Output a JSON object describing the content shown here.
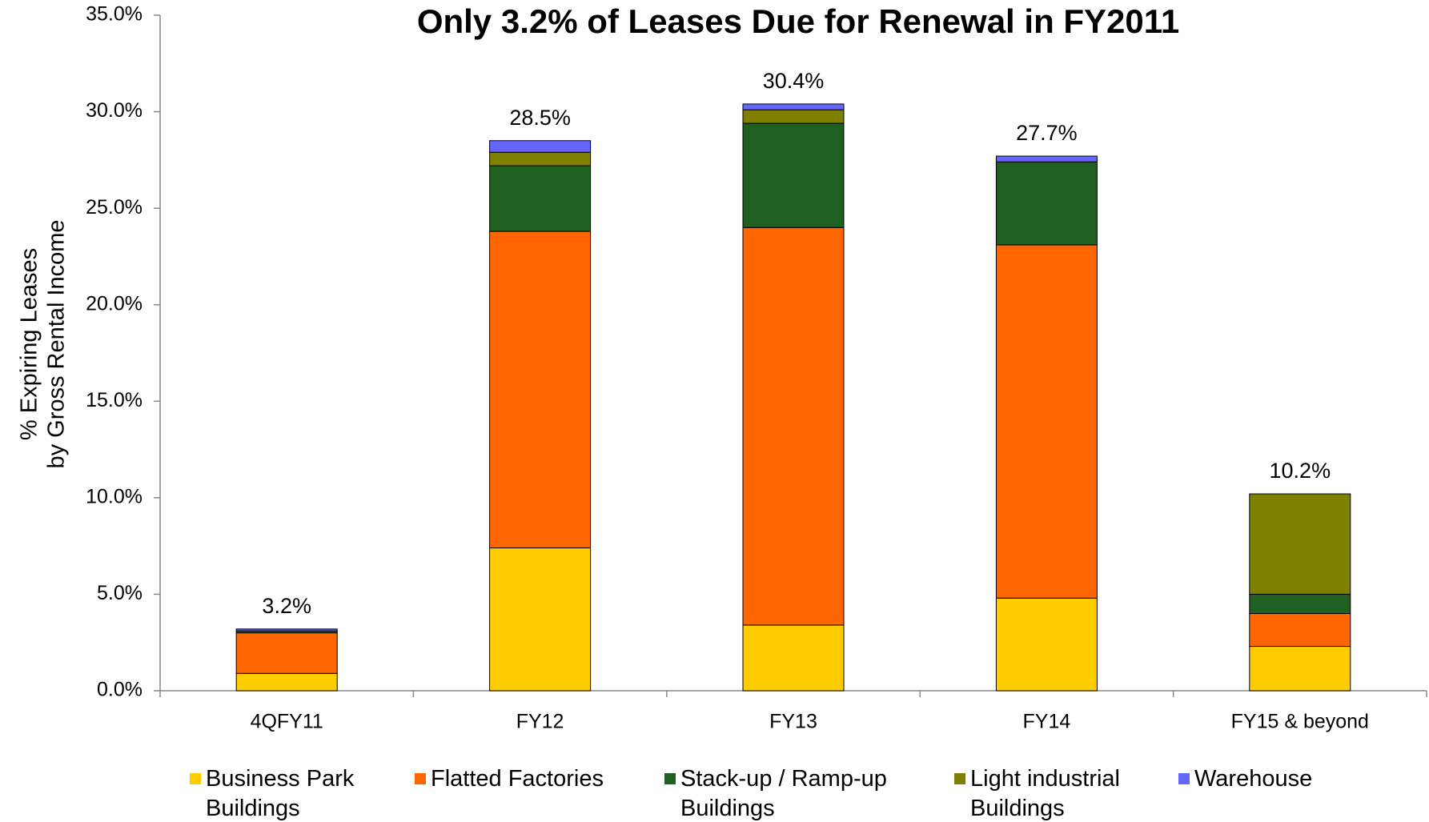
{
  "chart_data": {
    "type": "stacked_bar",
    "title": "Only 3.2% of Leases Due for Renewal in FY2011",
    "y_label": [
      "% Expiring Leases",
      "by Gross Rental Income"
    ],
    "categories": [
      "4QFY11",
      "FY12",
      "FY13",
      "FY14",
      "FY15 & beyond"
    ],
    "series": [
      {
        "name": "Business Park Buildings",
        "color": "#FFCC00",
        "values": [
          0.9,
          7.4,
          3.4,
          4.8,
          2.3
        ]
      },
      {
        "name": "Flatted Factories",
        "color": "#FF6600",
        "values": [
          2.1,
          16.4,
          20.6,
          18.3,
          1.7
        ]
      },
      {
        "name": "Stack-up / Ramp-up Buildings",
        "color": "#1F5F1F",
        "values": [
          0.1,
          3.4,
          5.4,
          4.3,
          1.0
        ]
      },
      {
        "name": "Light industrial Buildings",
        "color": "#808000",
        "values": [
          0,
          0.7,
          0.7,
          0,
          5.2
        ]
      },
      {
        "name": "Warehouse",
        "color": "#6666FF",
        "values": [
          0.1,
          0.6,
          0.3,
          0.3,
          0
        ]
      }
    ],
    "totals": [
      3.2,
      28.5,
      30.4,
      27.7,
      10.2
    ],
    "total_labels": [
      "3.2%",
      "28.5%",
      "30.4%",
      "27.7%",
      "10.2%"
    ],
    "ylim": [
      0,
      35
    ],
    "yticks": [
      {
        "value": 0,
        "label": "0.0%"
      },
      {
        "value": 5,
        "label": "5.0%"
      },
      {
        "value": 10,
        "label": "10.0%"
      },
      {
        "value": 15,
        "label": "15.0%"
      },
      {
        "value": 20,
        "label": "20.0%"
      },
      {
        "value": 25,
        "label": "25.0%"
      },
      {
        "value": 30,
        "label": "30.0%"
      },
      {
        "value": 35,
        "label": "35.0%"
      }
    ],
    "grid": false
  }
}
